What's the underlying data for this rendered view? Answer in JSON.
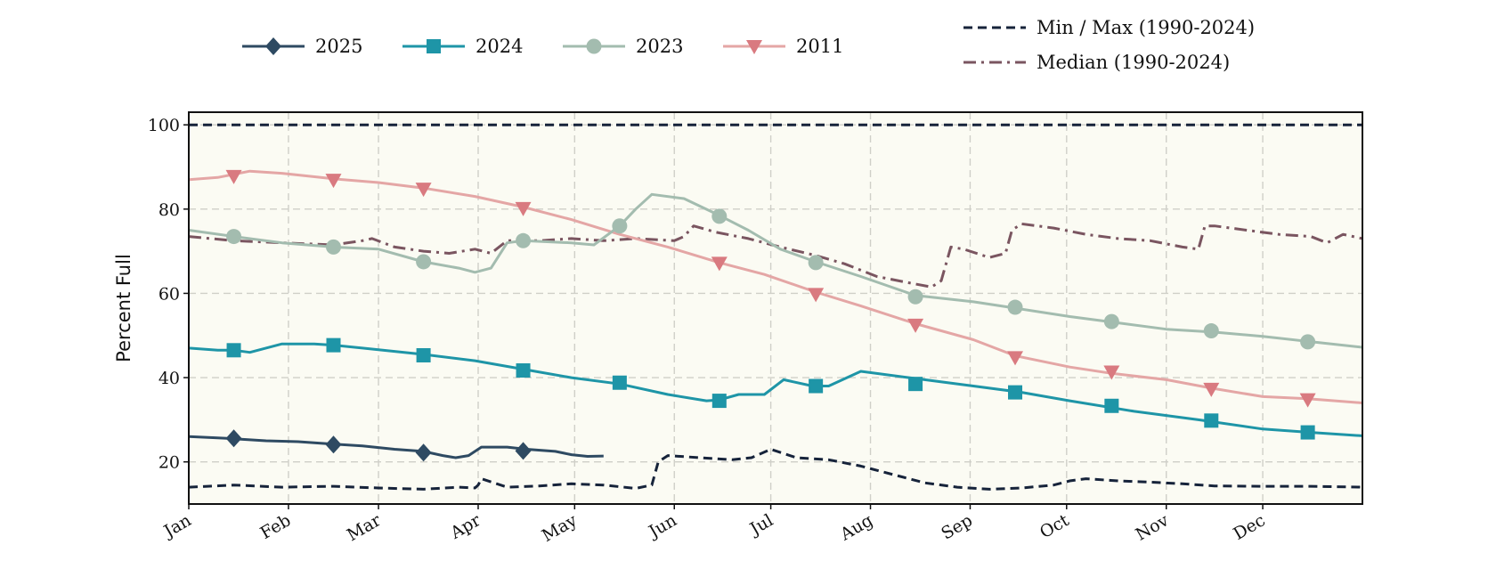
{
  "chart_data": {
    "type": "line",
    "title": "",
    "xlabel": "",
    "ylabel": "Percent Full",
    "ylim": [
      10,
      103
    ],
    "xlim": [
      1,
      366
    ],
    "y_ticks": [
      20,
      40,
      60,
      80,
      100
    ],
    "x_tick_labels": [
      "Jan",
      "Feb",
      "Mar",
      "Apr",
      "May",
      "Jun",
      "Jul",
      "Aug",
      "Sep",
      "Oct",
      "Nov",
      "Dec"
    ],
    "x_tick_days": [
      1,
      32,
      60,
      91,
      121,
      152,
      182,
      213,
      244,
      274,
      305,
      335
    ],
    "grid": true,
    "legend_placement": "top",
    "background_color": "#fbfbf3",
    "series": [
      {
        "name": "2025",
        "color": "#2e4a62",
        "style": "solid",
        "marker": "diamond",
        "x": [
          1,
          10,
          15,
          25,
          35,
          46,
          55,
          65,
          74,
          80,
          84,
          88,
          92,
          100,
          106,
          115,
          120,
          125,
          130
        ],
        "y": [
          26,
          25.7,
          25.5,
          25,
          24.8,
          24.2,
          23.8,
          23,
          22.5,
          21.5,
          21,
          21.5,
          23.5,
          23.5,
          23,
          22.5,
          21.7,
          21.3,
          21.4
        ],
        "marker_x": [
          15,
          46,
          74,
          105
        ],
        "marker_y": [
          25.6,
          24.1,
          22.2,
          22.6
        ]
      },
      {
        "name": "2024",
        "color": "#1e95a7",
        "style": "solid",
        "marker": "square",
        "x": [
          1,
          10,
          15,
          20,
          30,
          40,
          46,
          55,
          74,
          90,
          105,
          120,
          135,
          150,
          162,
          166,
          172,
          180,
          186,
          195,
          200,
          210,
          225,
          245,
          260,
          275,
          295,
          315,
          335,
          350,
          366
        ],
        "y": [
          47,
          46.5,
          46.5,
          46,
          48,
          48,
          47.7,
          47,
          45.5,
          44,
          42,
          40,
          38.5,
          36,
          34.5,
          34.7,
          36,
          36,
          39.5,
          38,
          38,
          41.5,
          40,
          38,
          36.5,
          34.5,
          32,
          30,
          27.8,
          27,
          26.2
        ],
        "marker_x": [
          15,
          46,
          74,
          105,
          135,
          166,
          196,
          227,
          258,
          288,
          319,
          349
        ],
        "marker_y": [
          46.5,
          47.7,
          45.3,
          41.7,
          38.8,
          34.5,
          38,
          38.5,
          36.5,
          33.3,
          29.8,
          27
        ]
      },
      {
        "name": "2023",
        "color": "#a3bcaf",
        "style": "solid",
        "marker": "circle",
        "x": [
          1,
          15,
          30,
          46,
          60,
          74,
          85,
          90,
          95,
          100,
          105,
          120,
          127,
          135,
          140,
          145,
          155,
          166,
          175,
          185,
          196,
          210,
          227,
          245,
          258,
          275,
          288,
          305,
          320,
          335,
          350,
          366
        ],
        "y": [
          75,
          73.5,
          72,
          71,
          70.5,
          67.5,
          66,
          65,
          66,
          72,
          72.5,
          72,
          71.5,
          76,
          80,
          83.5,
          82.5,
          78.5,
          75,
          70.5,
          67.5,
          64,
          59.5,
          58,
          56.5,
          54.5,
          53.2,
          51.5,
          50.8,
          49.8,
          48.5,
          47.2
        ],
        "marker_x": [
          15,
          46,
          74,
          105,
          135,
          166,
          196,
          227,
          258,
          288,
          319,
          349
        ],
        "marker_y": [
          73.5,
          71,
          67.5,
          72.5,
          76,
          78.3,
          67.3,
          59.2,
          56.7,
          53.3,
          51.1,
          48.5
        ]
      },
      {
        "name": "2011",
        "color": "#d97a80",
        "line_color": "#e4a6a5",
        "style": "solid",
        "marker": "triangle-down",
        "x": [
          1,
          10,
          20,
          30,
          46,
          60,
          74,
          90,
          105,
          120,
          135,
          150,
          166,
          180,
          196,
          210,
          227,
          245,
          258,
          275,
          288,
          305,
          319,
          335,
          349,
          366
        ],
        "y": [
          87,
          87.5,
          89,
          88.5,
          87.2,
          86.3,
          85,
          83,
          80.5,
          77.5,
          74,
          71,
          67.3,
          64.5,
          60.3,
          57,
          52.8,
          49,
          45.2,
          42.5,
          41,
          39.5,
          37.5,
          35.5,
          35,
          34
        ],
        "marker_x": [
          15,
          46,
          74,
          105,
          166,
          196,
          227,
          258,
          288,
          319,
          349
        ],
        "marker_y": [
          87.8,
          86.9,
          84.8,
          80.2,
          67.2,
          59.8,
          52.5,
          44.8,
          41.4,
          37.3,
          34.8
        ]
      },
      {
        "name": "Min / Max (1990-2024)",
        "color": "#16233a",
        "style": "dashed",
        "marker": "none",
        "x": [
          1,
          366
        ],
        "y": [
          100,
          100
        ],
        "min_x": [
          1,
          15,
          30,
          46,
          60,
          74,
          85,
          90,
          91,
          92,
          100,
          110,
          120,
          130,
          140,
          145,
          147,
          150,
          160,
          170,
          176,
          182,
          190,
          200,
          210,
          220,
          230,
          240,
          250,
          260,
          270,
          275,
          280,
          290,
          300,
          310,
          320,
          335,
          350,
          366
        ],
        "min_y": [
          14,
          14.5,
          14,
          14.2,
          13.8,
          13.5,
          14,
          13.8,
          14.5,
          16,
          14,
          14.3,
          14.8,
          14.5,
          13.7,
          14.5,
          20,
          21.5,
          21,
          20.5,
          21,
          23,
          21,
          20.5,
          19,
          17,
          15,
          14,
          13.5,
          13.8,
          14.5,
          15.5,
          16,
          15.5,
          15.2,
          14.8,
          14.3,
          14.2,
          14.2,
          14
        ]
      },
      {
        "name": "Median (1990-2024)",
        "color": "#7a5560",
        "style": "dashdot",
        "marker": "none",
        "x": [
          1,
          15,
          30,
          46,
          55,
          58,
          65,
          74,
          82,
          90,
          95,
          100,
          110,
          120,
          130,
          140,
          152,
          155,
          158,
          165,
          175,
          185,
          196,
          205,
          215,
          225,
          232,
          235,
          238,
          242,
          250,
          255,
          257,
          260,
          270,
          280,
          290,
          300,
          310,
          315,
          317,
          320,
          330,
          340,
          350,
          355,
          360,
          366
        ],
        "y": [
          73.5,
          72.5,
          72,
          71.5,
          72.5,
          73,
          71,
          70,
          69.5,
          70.5,
          69.5,
          72.5,
          72.5,
          73,
          72.5,
          73,
          72.5,
          73.5,
          76,
          74.5,
          73,
          71,
          69,
          67,
          64,
          62.5,
          61.5,
          63,
          71,
          70.5,
          68.5,
          69.5,
          75,
          76.5,
          75.5,
          74,
          73,
          72.5,
          71,
          70.5,
          76,
          76,
          75,
          74,
          73.5,
          72,
          74,
          73
        ]
      }
    ]
  }
}
